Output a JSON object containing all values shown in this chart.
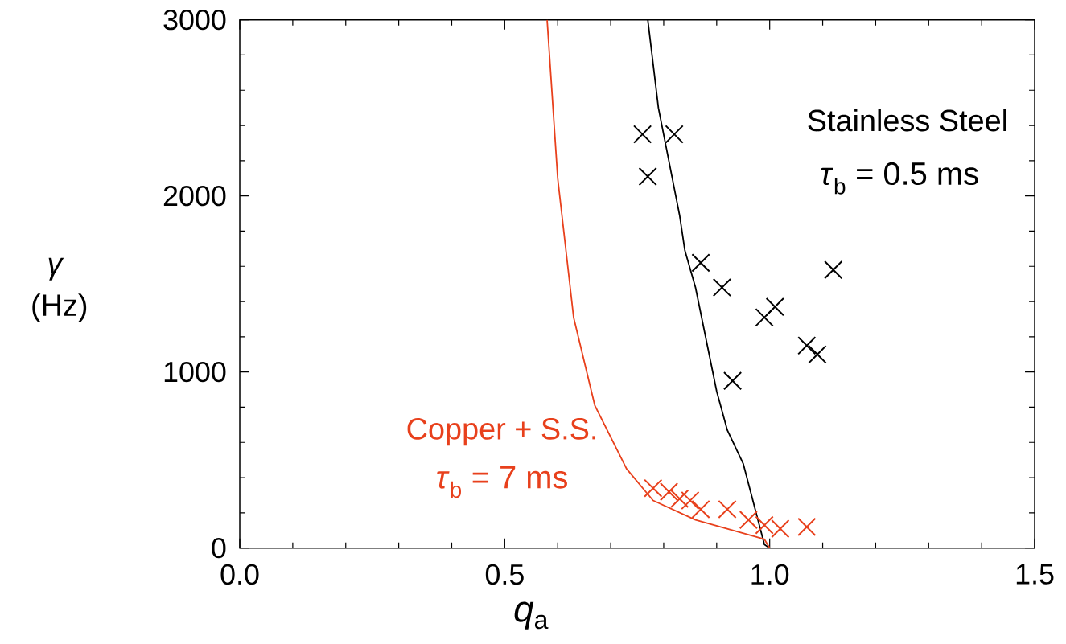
{
  "chart_data": {
    "type": "scatter",
    "xlabel": "*q*$_{a}$",
    "ylabel": "*γ* (Hz)",
    "xlim": [
      0,
      1.5
    ],
    "ylim": [
      0,
      3000
    ],
    "xticks": [
      {
        "value": 0,
        "label": "0.0"
      },
      {
        "value": 0.5,
        "label": "0.5"
      },
      {
        "value": 1,
        "label": "1.0"
      },
      {
        "value": 1.5,
        "label": "1.5"
      }
    ],
    "yticks": [
      0,
      1000,
      2000,
      3000
    ],
    "legend": "top right",
    "annotations": [
      "*τ*$_{b}$ = 0.5 ms",
      "*τ*$_{b}$ = 7 ms"
    ],
    "series": [
      {
        "name": "Stainless Steel",
        "marker": "cross",
        "color": "#000000",
        "x": [
          0.76,
          0.82,
          0.77,
          0.87,
          0.91,
          1.12,
          1.01,
          0.99,
          1.07,
          1.09,
          0.93
        ],
        "values": [
          2350,
          2350,
          2110,
          1620,
          1480,
          1580,
          1370,
          1310,
          1150,
          1100,
          950
        ]
      },
      {
        "name": "Copper + S.S.",
        "marker": "cross",
        "color": "#e8401c",
        "x": [
          0.78,
          0.81,
          0.83,
          0.85,
          0.87,
          0.92,
          0.96,
          0.99,
          1.02,
          1.07
        ],
        "values": [
          340,
          320,
          280,
          270,
          220,
          220,
          160,
          130,
          110,
          120
        ]
      },
      {
        "type": "line",
        "color": "#000000",
        "x": [
          0.77,
          0.79,
          0.83,
          0.84,
          0.86,
          0.9,
          0.92,
          0.95,
          0.99,
          1.0
        ],
        "values": [
          3000,
          2500,
          1890,
          1690,
          1480,
          890,
          670,
          480,
          20,
          0
        ]
      },
      {
        "type": "line",
        "color": "#e8401c",
        "x": [
          0.58,
          0.6,
          0.63,
          0.67,
          0.73,
          0.78,
          0.86,
          0.99,
          1.0
        ],
        "values": [
          3000,
          2100,
          1310,
          810,
          450,
          270,
          160,
          50,
          0
        ]
      }
    ]
  }
}
